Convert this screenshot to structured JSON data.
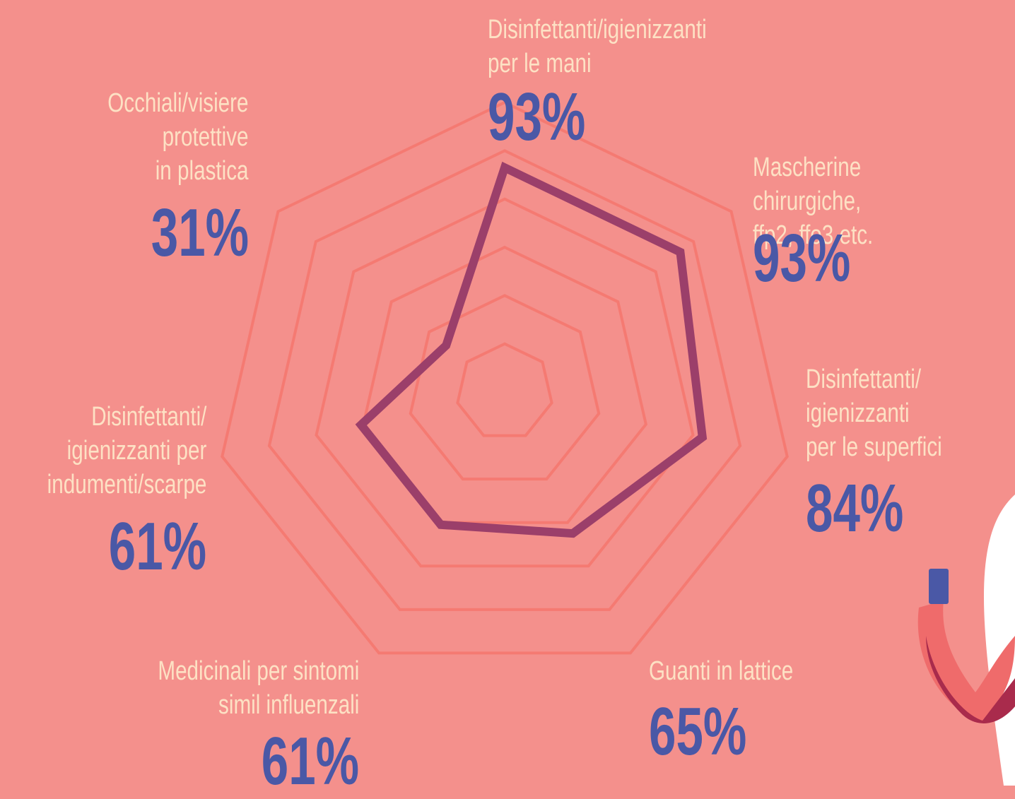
{
  "chart_data": {
    "type": "radar",
    "categories": [
      "Disinfettanti/igienizzanti\nper le mani",
      "Mascherine chirurgiche,\nffp2, ffo3 etc.",
      "Disinfettanti/\nigienizzanti\nper le superfici",
      "Guanti in lattice",
      "Medicinali per sintomi\nsimil influenzali",
      "Disinfettanti/\nigienizzanti per\nindumenti/scarpe",
      "Occhiali/visiere\nprotettive\nin plastica"
    ],
    "values": [
      93,
      93,
      84,
      65,
      61,
      61,
      31
    ],
    "value_labels": [
      "93%",
      "93%",
      "84%",
      "65%",
      "61%",
      "61%",
      "31%"
    ],
    "rlim": [
      0,
      120
    ],
    "rticks": [
      20,
      40,
      60,
      80,
      100,
      120
    ],
    "color": "#9b3f6a"
  }
}
